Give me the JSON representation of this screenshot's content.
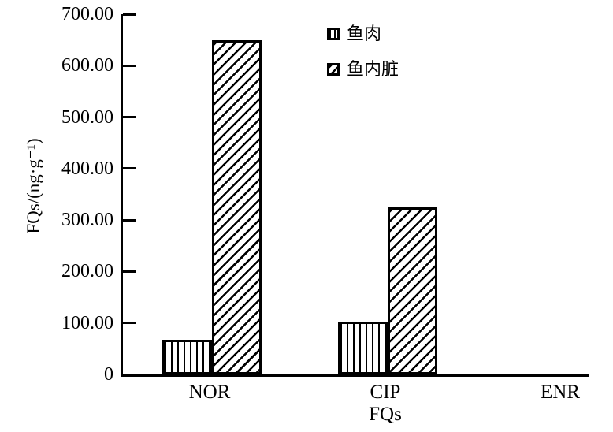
{
  "colors": {
    "foreground": "#000000",
    "background": "#ffffff"
  },
  "chart_data": {
    "type": "bar",
    "title": "",
    "xlabel": "FQs",
    "ylabel": "FQs/(ng·g⁻¹)",
    "categories": [
      "NOR",
      "CIP",
      "ENR"
    ],
    "series": [
      {
        "name": "鱼肉",
        "hatch": "vertical",
        "values": [
          68,
          102,
          0
        ]
      },
      {
        "name": "鱼内脏",
        "hatch": "diagonal",
        "values": [
          650,
          325,
          0
        ]
      }
    ],
    "ylim": [
      0,
      700
    ],
    "yticks": [
      {
        "value": 700,
        "label": "700.00"
      },
      {
        "value": 600,
        "label": "600.00"
      },
      {
        "value": 500,
        "label": "500.00"
      },
      {
        "value": 400,
        "label": "400.00"
      },
      {
        "value": 300,
        "label": "300.00"
      },
      {
        "value": 200,
        "label": "200.00"
      },
      {
        "value": 100,
        "label": "100.00"
      },
      {
        "value": 0,
        "label": "0"
      }
    ],
    "grid": false,
    "legend_position": "upper-center"
  }
}
